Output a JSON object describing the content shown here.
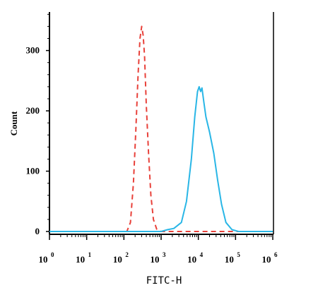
{
  "chart_data": {
    "type": "line",
    "xlabel": "FITC-H",
    "ylabel": "Count",
    "x_scale": "log",
    "xlim": [
      1,
      1000000
    ],
    "ylim": [
      0,
      370
    ],
    "x_ticks": [
      {
        "base": "10",
        "exp": "0"
      },
      {
        "base": "10",
        "exp": "1"
      },
      {
        "base": "10",
        "exp": "2"
      },
      {
        "base": "10",
        "exp": "3"
      },
      {
        "base": "10",
        "exp": "4"
      },
      {
        "base": "10",
        "exp": "5"
      },
      {
        "base": "10",
        "exp": "6"
      }
    ],
    "y_ticks": [
      "0",
      "100",
      "200",
      "300"
    ],
    "series": [
      {
        "style": "dashed",
        "color": "#e8413a",
        "points": [
          [
            1,
            0
          ],
          [
            100,
            0
          ],
          [
            120,
            0
          ],
          [
            150,
            15
          ],
          [
            180,
            80
          ],
          [
            210,
            170
          ],
          [
            240,
            260
          ],
          [
            270,
            320
          ],
          [
            300,
            340
          ],
          [
            330,
            325
          ],
          [
            360,
            290
          ],
          [
            400,
            210
          ],
          [
            460,
            130
          ],
          [
            530,
            60
          ],
          [
            620,
            20
          ],
          [
            760,
            4
          ],
          [
            1000,
            0
          ],
          [
            1000000,
            0
          ]
        ]
      },
      {
        "style": "solid",
        "color": "#29b6e6",
        "points": [
          [
            1,
            0
          ],
          [
            1000,
            0
          ],
          [
            1500,
            3
          ],
          [
            2200,
            5
          ],
          [
            3500,
            15
          ],
          [
            4800,
            50
          ],
          [
            6500,
            120
          ],
          [
            8000,
            190
          ],
          [
            9500,
            232
          ],
          [
            10500,
            240
          ],
          [
            11500,
            232
          ],
          [
            12500,
            238
          ],
          [
            14000,
            215
          ],
          [
            16000,
            190
          ],
          [
            20000,
            165
          ],
          [
            26000,
            130
          ],
          [
            33000,
            85
          ],
          [
            42000,
            45
          ],
          [
            55000,
            15
          ],
          [
            80000,
            3
          ],
          [
            120000,
            0
          ],
          [
            1000000,
            0
          ]
        ]
      }
    ]
  }
}
